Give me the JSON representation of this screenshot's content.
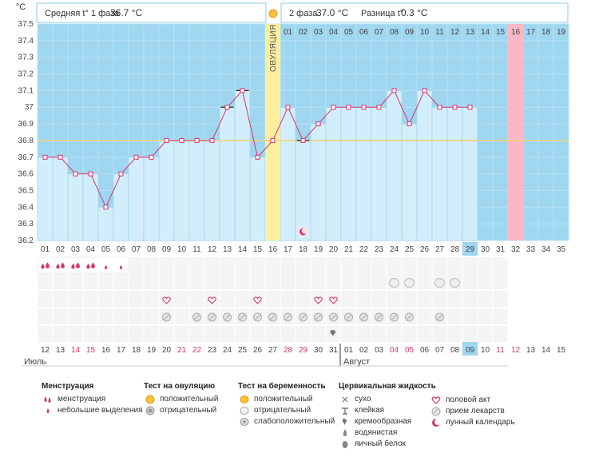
{
  "header": {
    "unit": "°C",
    "phase1_label": "Средняя t° 1 фаза",
    "phase1_value": "36.7 °C",
    "phase2_label": "2 фаза",
    "phase2_value": "37.0 °C",
    "diff_label": "Разница t°",
    "diff_value": "0.3 °C",
    "ovulation_label": "ОВУЛЯЦИЯ"
  },
  "chart_data": {
    "type": "line",
    "ylim": [
      36.2,
      37.5
    ],
    "y_ticks": [
      "36.2",
      "36.3",
      "36.4",
      "36.5",
      "36.6",
      "36.7",
      "36.8",
      "36.9",
      "37",
      "37.1",
      "37.2",
      "37.3",
      "37.4",
      "37.5"
    ],
    "cycle_days": [
      "01",
      "02",
      "03",
      "04",
      "05",
      "06",
      "07",
      "08",
      "09",
      "10",
      "11",
      "12",
      "13",
      "14",
      "15",
      "16",
      "17",
      "18",
      "19",
      "20",
      "21",
      "22",
      "23",
      "24",
      "25",
      "26",
      "27",
      "28",
      "29",
      "30",
      "31",
      "32",
      "33",
      "34",
      "35"
    ],
    "temperatures": [
      36.7,
      36.7,
      36.6,
      36.6,
      36.4,
      36.6,
      36.7,
      36.7,
      36.8,
      36.8,
      36.8,
      36.8,
      37.0,
      37.1,
      36.7,
      36.8,
      37.0,
      36.8,
      36.9,
      37.0,
      37.0,
      37.0,
      37.0,
      37.1,
      36.9,
      37.1,
      37.0,
      37.0,
      37.0
    ],
    "phase2_day_labels": [
      "01",
      "02",
      "03",
      "04",
      "05",
      "06",
      "07",
      "08",
      "09",
      "10",
      "11",
      "12",
      "13",
      "14",
      "15",
      "16",
      "17",
      "18",
      "19"
    ],
    "coverline": 36.8,
    "ovulation_day": 16,
    "next_period_day": 32,
    "current_day": 29,
    "calendar_dates": [
      "12",
      "13",
      "14",
      "15",
      "16",
      "17",
      "18",
      "19",
      "20",
      "21",
      "22",
      "23",
      "24",
      "25",
      "26",
      "27",
      "28",
      "29",
      "30",
      "31",
      "01",
      "02",
      "03",
      "04",
      "05",
      "06",
      "07",
      "08",
      "09",
      "10",
      "11",
      "12",
      "13",
      "14",
      "15"
    ],
    "weekend_dates": [
      2,
      3,
      9,
      10,
      16,
      17,
      23,
      24,
      30,
      31
    ],
    "months": [
      "Июль",
      "Август"
    ],
    "marks": {
      "menstruation": [
        1,
        2,
        3,
        4
      ],
      "spotting": [
        5,
        6
      ],
      "opk_negative": [
        24,
        25,
        27,
        28
      ],
      "intercourse": [
        9,
        12,
        15,
        19,
        20
      ],
      "medication": [
        9,
        11,
        12,
        13,
        14,
        15,
        16,
        17,
        18,
        19,
        20,
        21,
        22,
        23,
        24,
        25,
        27
      ],
      "creamy": [
        20
      ],
      "moon": 18
    }
  },
  "legend": {
    "menstruation": {
      "title": "Менструация",
      "items": [
        "менструация",
        "небольшие выделения"
      ]
    },
    "ovulation_test": {
      "title": "Тест на овуляцию",
      "items": [
        "положительный",
        "отрицательный"
      ]
    },
    "pregnancy_test": {
      "title": "Тест на беременность",
      "items": [
        "положительный",
        "отрицательный",
        "слабоположительный"
      ]
    },
    "cervical": {
      "title": "Цервикальная жидкость",
      "items": [
        "сухо",
        "клейкая",
        "кремообразная",
        "водянистая",
        "яичный белок"
      ]
    },
    "other": {
      "items": [
        "половой акт",
        "прием лекарств",
        "лунный календарь"
      ]
    }
  },
  "colors": {
    "sky": "#9fd6f0",
    "bar": "#d3eefb",
    "bar_edge": "#8fc8e8",
    "line": "#d9336c",
    "ovulation": "#fdeea0",
    "next_period": "#f9b8c8",
    "current_day": "#9fd6f0",
    "weekend": "#d9336c"
  }
}
